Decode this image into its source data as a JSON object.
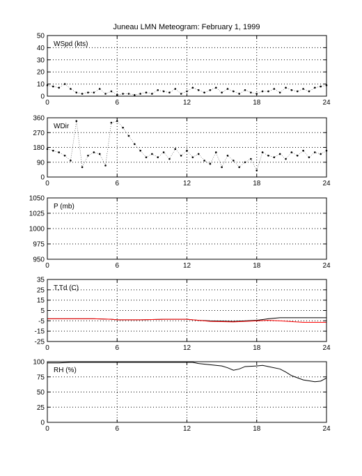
{
  "figure": {
    "title": "Juneau LMN Meteogram:  February  1, 1999"
  },
  "chart_data": [
    {
      "type": "scatter",
      "label": "WSpd (kts)",
      "xlim": [
        0,
        24
      ],
      "ylim": [
        0,
        50
      ],
      "xticks": [
        0,
        6,
        12,
        18,
        24
      ],
      "yticks": [
        0,
        10,
        20,
        30,
        40,
        50
      ],
      "grid": true,
      "series": [
        {
          "color": "#000000",
          "x": [
            0,
            0.5,
            1,
            1.5,
            2,
            2.5,
            3,
            3.5,
            4,
            4.5,
            5,
            5.5,
            6,
            6.5,
            7,
            7.5,
            8,
            8.5,
            9,
            9.5,
            10,
            10.5,
            11,
            11.5,
            12,
            12.5,
            13,
            13.5,
            14,
            14.5,
            15,
            15.5,
            16,
            16.5,
            17,
            17.5,
            18,
            18.5,
            19,
            19.5,
            20,
            20.5,
            21,
            21.5,
            22,
            22.5,
            23,
            23.5,
            24
          ],
          "values": [
            9,
            8,
            7,
            10,
            6,
            3,
            2,
            3,
            3,
            6,
            2,
            4,
            1,
            2,
            2,
            1,
            2,
            3,
            2,
            5,
            4,
            3,
            6,
            2,
            4,
            7,
            5,
            3,
            5,
            7,
            3,
            6,
            4,
            2,
            5,
            3,
            2,
            4,
            4,
            6,
            3,
            7,
            5,
            4,
            6,
            4,
            7,
            8,
            9
          ]
        }
      ]
    },
    {
      "type": "scatter",
      "label": "WDir",
      "xlim": [
        0,
        24
      ],
      "ylim": [
        0,
        360
      ],
      "xticks": [
        0,
        6,
        12,
        18,
        24
      ],
      "yticks": [
        0,
        90,
        180,
        270,
        360
      ],
      "grid": true,
      "series": [
        {
          "color": "#000000",
          "x": [
            0,
            0.5,
            1,
            1.5,
            2,
            2.5,
            3,
            3.5,
            4,
            4.5,
            5,
            5.5,
            6,
            6.5,
            7,
            7.5,
            8,
            8.5,
            9,
            9.5,
            10,
            10.5,
            11,
            11.5,
            12,
            12.5,
            13,
            13.5,
            14,
            14.5,
            15,
            15.5,
            16,
            16.5,
            17,
            17.5,
            18,
            18.5,
            19,
            19.5,
            20,
            20.5,
            21,
            21.5,
            22,
            22.5,
            23,
            23.5,
            24
          ],
          "values": [
            170,
            160,
            150,
            130,
            100,
            340,
            60,
            130,
            150,
            140,
            70,
            330,
            340,
            300,
            250,
            200,
            160,
            120,
            140,
            120,
            150,
            110,
            170,
            130,
            160,
            120,
            140,
            100,
            80,
            150,
            60,
            130,
            100,
            60,
            90,
            110,
            40,
            150,
            130,
            120,
            140,
            110,
            150,
            130,
            160,
            120,
            150,
            140,
            160
          ]
        }
      ]
    },
    {
      "type": "line",
      "label": "P (mb)",
      "xlim": [
        0,
        24
      ],
      "ylim": [
        950,
        1050
      ],
      "xticks": [
        0,
        6,
        12,
        18,
        24
      ],
      "yticks": [
        950,
        975,
        1000,
        1025,
        1050
      ],
      "grid": true,
      "series": []
    },
    {
      "type": "line",
      "label": "T,Td (C)",
      "xlim": [
        0,
        24
      ],
      "ylim": [
        -25,
        35
      ],
      "xticks": [
        0,
        6,
        12,
        18,
        24
      ],
      "yticks": [
        -25,
        -15,
        -5,
        5,
        15,
        25,
        35
      ],
      "grid": true,
      "series": [
        {
          "color": "#000000",
          "x": [
            0,
            2,
            4,
            5.5,
            6,
            8,
            10,
            12,
            13,
            14,
            16,
            17,
            18,
            19,
            20,
            22,
            24
          ],
          "values": [
            -3,
            -3,
            -3,
            -3.5,
            -4,
            -4,
            -3.5,
            -3.5,
            -4.5,
            -5,
            -5.5,
            -5,
            -4.5,
            -3,
            -2,
            -2,
            -2
          ]
        },
        {
          "color": "#ff0000",
          "x": [
            0,
            2,
            4,
            5.5,
            6,
            8,
            10,
            12,
            13,
            14,
            16,
            17,
            18,
            19,
            20,
            22,
            24
          ],
          "values": [
            -3,
            -3,
            -3,
            -3.5,
            -4,
            -4,
            -3.5,
            -3.5,
            -4.5,
            -5.5,
            -6,
            -5.5,
            -5,
            -4.5,
            -5,
            -6.5,
            -6.5
          ]
        }
      ]
    },
    {
      "type": "line",
      "label": "RH (%)",
      "xlim": [
        0,
        24
      ],
      "ylim": [
        0,
        100
      ],
      "xticks": [
        0,
        6,
        12,
        18,
        24
      ],
      "yticks": [
        0,
        25,
        50,
        75,
        100
      ],
      "grid": true,
      "series": [
        {
          "color": "#000000",
          "x": [
            0,
            1,
            2,
            4,
            6,
            8,
            10,
            12,
            12.5,
            13,
            14,
            15,
            15.5,
            16,
            16.5,
            17,
            18,
            18.5,
            19,
            20,
            20.5,
            21,
            22,
            23,
            23.5,
            24
          ],
          "values": [
            98,
            98,
            99,
            99,
            99,
            99,
            99,
            99,
            99,
            97,
            95,
            93,
            90,
            86,
            88,
            92,
            93,
            94,
            92,
            88,
            83,
            77,
            70,
            67,
            68,
            73
          ]
        }
      ]
    }
  ]
}
